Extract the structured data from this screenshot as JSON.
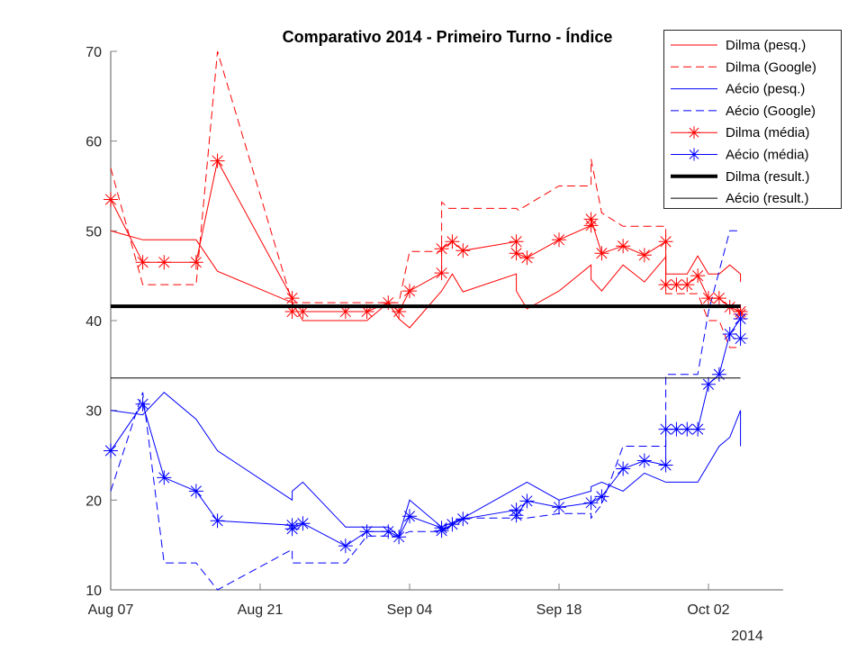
{
  "chart_data": {
    "type": "line",
    "title": "Comparativo 2014 - Primeiro Turno - Índice",
    "xlabel": "",
    "ylabel": "",
    "x_unit": "days since Aug 07 2014",
    "year_label": "2014",
    "xlim": [
      0,
      63
    ],
    "ylim": [
      10,
      70
    ],
    "x_ticks": [
      {
        "value": 0,
        "label": "Aug 07"
      },
      {
        "value": 14,
        "label": "Aug 21"
      },
      {
        "value": 28,
        "label": "Sep 04"
      },
      {
        "value": 42,
        "label": "Sep 18"
      },
      {
        "value": 56,
        "label": "Oct 02"
      }
    ],
    "y_ticks": [
      10,
      20,
      30,
      40,
      50,
      60,
      70
    ],
    "grid": false,
    "legend_position": "top-right",
    "series": [
      {
        "name": "Dilma (pesq.)",
        "color": "#ff0000",
        "style": "solid",
        "marker": "none",
        "width": 1,
        "points": [
          [
            0,
            50
          ],
          [
            3,
            49
          ],
          [
            8,
            49
          ],
          [
            10,
            45.5
          ],
          [
            17,
            42
          ],
          [
            18,
            40
          ],
          [
            24,
            40
          ],
          [
            26,
            42
          ],
          [
            27,
            40.2
          ],
          [
            28,
            39.2
          ],
          [
            31,
            43.3
          ],
          [
            32,
            45.2
          ],
          [
            33,
            43.2
          ],
          [
            38,
            45.2
          ],
          [
            38,
            43.3
          ],
          [
            39,
            41.3
          ],
          [
            42,
            43.3
          ],
          [
            45,
            46.2
          ],
          [
            45,
            44.6
          ],
          [
            46,
            43.3
          ],
          [
            48,
            46.2
          ],
          [
            50,
            44.3
          ],
          [
            52,
            47.1
          ],
          [
            52,
            45.2
          ],
          [
            54,
            45.2
          ],
          [
            55,
            47.2
          ],
          [
            56,
            45.2
          ],
          [
            57,
            45.2
          ],
          [
            58,
            46.2
          ],
          [
            59,
            45.2
          ],
          [
            59,
            44.3
          ]
        ]
      },
      {
        "name": "Dilma (Google)",
        "color": "#ff0000",
        "style": "dashed",
        "marker": "none",
        "width": 1,
        "points": [
          [
            0,
            57
          ],
          [
            3,
            44
          ],
          [
            8,
            44
          ],
          [
            10,
            70
          ],
          [
            17,
            42
          ],
          [
            27,
            42
          ],
          [
            28,
            47.7
          ],
          [
            31,
            47.7
          ],
          [
            31,
            53.2
          ],
          [
            31.7,
            52.5
          ],
          [
            38,
            52.5
          ],
          [
            38.2,
            52.3
          ],
          [
            42,
            55
          ],
          [
            45,
            55
          ],
          [
            45,
            58
          ],
          [
            46,
            52
          ],
          [
            48,
            50.5
          ],
          [
            52,
            50.5
          ],
          [
            52,
            43
          ],
          [
            55,
            43
          ],
          [
            56,
            40
          ],
          [
            57,
            40
          ],
          [
            58,
            37
          ],
          [
            59,
            37
          ]
        ]
      },
      {
        "name": "Aécio (pesq.)",
        "color": "#0000ff",
        "style": "solid",
        "marker": "none",
        "width": 1,
        "points": [
          [
            0,
            30
          ],
          [
            3,
            29.5
          ],
          [
            5,
            32
          ],
          [
            8,
            29
          ],
          [
            10,
            25.5
          ],
          [
            17,
            20
          ],
          [
            17,
            21
          ],
          [
            18,
            22
          ],
          [
            22,
            17
          ],
          [
            26,
            17
          ],
          [
            27,
            16
          ],
          [
            28,
            20
          ],
          [
            31,
            17
          ],
          [
            33,
            18
          ],
          [
            39,
            22
          ],
          [
            42,
            20
          ],
          [
            45,
            21
          ],
          [
            45,
            21.5
          ],
          [
            46,
            22
          ],
          [
            48,
            21
          ],
          [
            50,
            23
          ],
          [
            52,
            22
          ],
          [
            55,
            22
          ],
          [
            57,
            26
          ],
          [
            58,
            27
          ],
          [
            59,
            30
          ],
          [
            59,
            26
          ]
        ]
      },
      {
        "name": "Aécio (Google)",
        "color": "#0000ff",
        "style": "dashed",
        "marker": "none",
        "width": 1,
        "points": [
          [
            0,
            21
          ],
          [
            3,
            32
          ],
          [
            5,
            13
          ],
          [
            8,
            13
          ],
          [
            10,
            10
          ],
          [
            17,
            14.5
          ],
          [
            17,
            13
          ],
          [
            22,
            13
          ],
          [
            24,
            16
          ],
          [
            27,
            16
          ],
          [
            28,
            16.5
          ],
          [
            31,
            16.5
          ],
          [
            33,
            18
          ],
          [
            39,
            18
          ],
          [
            42,
            18.5
          ],
          [
            45,
            18.5
          ],
          [
            45,
            18
          ],
          [
            46,
            19.5
          ],
          [
            48,
            26
          ],
          [
            52,
            26
          ],
          [
            52,
            34
          ],
          [
            55,
            34
          ],
          [
            56,
            41
          ],
          [
            58,
            50
          ],
          [
            59,
            50
          ]
        ]
      },
      {
        "name": "Dilma (média)",
        "color": "#ff0000",
        "style": "solid",
        "marker": "asterisk",
        "width": 1,
        "points": [
          [
            0,
            53.5
          ],
          [
            3,
            46.5
          ],
          [
            5,
            46.5
          ],
          [
            8,
            46.5
          ],
          [
            10,
            57.8
          ],
          [
            17,
            42.5
          ],
          [
            17,
            41
          ],
          [
            18,
            41
          ],
          [
            22,
            41
          ],
          [
            24,
            41
          ],
          [
            26,
            42
          ],
          [
            27,
            41
          ],
          [
            28,
            43.3
          ],
          [
            31,
            45.3
          ],
          [
            31,
            48
          ],
          [
            32,
            48.8
          ],
          [
            33,
            47.8
          ],
          [
            38,
            48.8
          ],
          [
            38,
            47.5
          ],
          [
            39,
            47
          ],
          [
            42,
            49
          ],
          [
            45,
            50.6
          ],
          [
            45,
            51.3
          ],
          [
            46,
            47.5
          ],
          [
            48,
            48.3
          ],
          [
            50,
            47.3
          ],
          [
            52,
            48.8
          ],
          [
            52,
            44
          ],
          [
            53,
            44
          ],
          [
            54,
            44
          ],
          [
            55,
            45
          ],
          [
            56,
            42.5
          ],
          [
            57,
            42.5
          ],
          [
            58,
            41.5
          ],
          [
            59,
            41
          ],
          [
            59,
            40.7
          ]
        ]
      },
      {
        "name": "Aécio (média)",
        "color": "#0000ff",
        "style": "solid",
        "marker": "asterisk",
        "width": 1,
        "points": [
          [
            0,
            25.5
          ],
          [
            3,
            30.7
          ],
          [
            5,
            22.5
          ],
          [
            8,
            21
          ],
          [
            10,
            17.7
          ],
          [
            17,
            17.2
          ],
          [
            17,
            16.8
          ],
          [
            18,
            17.4
          ],
          [
            22,
            14.9
          ],
          [
            24,
            16.5
          ],
          [
            26,
            16.5
          ],
          [
            27,
            15.9
          ],
          [
            28,
            18.2
          ],
          [
            31,
            16.9
          ],
          [
            31,
            16.6
          ],
          [
            32,
            17.3
          ],
          [
            33,
            17.9
          ],
          [
            38,
            18.9
          ],
          [
            38,
            18.3
          ],
          [
            39,
            19.9
          ],
          [
            42,
            19.2
          ],
          [
            45,
            19.7
          ],
          [
            46,
            20.4
          ],
          [
            48,
            23.5
          ],
          [
            50,
            24.4
          ],
          [
            52,
            23.9
          ],
          [
            52,
            27.9
          ],
          [
            53,
            27.9
          ],
          [
            54,
            27.9
          ],
          [
            55,
            27.9
          ],
          [
            56,
            32.9
          ],
          [
            57,
            34
          ],
          [
            58,
            38.5
          ],
          [
            59,
            40.2
          ],
          [
            59,
            38
          ]
        ]
      },
      {
        "name": "Dilma (result.)",
        "color": "#000000",
        "style": "solid",
        "marker": "none",
        "width": 4,
        "points": [
          [
            0,
            41.6
          ],
          [
            59,
            41.6
          ]
        ]
      },
      {
        "name": "Aécio (result.)",
        "color": "#000000",
        "style": "solid",
        "marker": "none",
        "width": 1,
        "points": [
          [
            0,
            33.6
          ],
          [
            59,
            33.6
          ]
        ]
      }
    ]
  }
}
